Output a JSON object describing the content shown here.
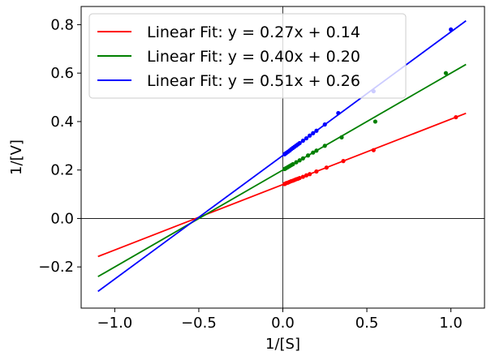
{
  "chart_data": {
    "type": "scatter",
    "title": "",
    "xlabel": "1/[S]",
    "ylabel": "1/[V]",
    "xlim": [
      -1.2,
      1.2
    ],
    "ylim": [
      -0.37,
      0.875
    ],
    "xticks": [
      -1.0,
      -0.5,
      0.0,
      0.5,
      1.0
    ],
    "xtick_labels": [
      "−1.0",
      "−0.5",
      "0.0",
      "0.5",
      "1.0"
    ],
    "yticks": [
      -0.2,
      0.0,
      0.2,
      0.4,
      0.6,
      0.8
    ],
    "ytick_labels": [
      "−0.2",
      "0.0",
      "0.2",
      "0.4",
      "0.6",
      "0.8"
    ],
    "grid": false,
    "reference_lines": {
      "x": 0,
      "y": 0
    },
    "legend": "top-left",
    "fit_x_range": [
      -1.1,
      1.09
    ],
    "series": [
      {
        "name": "Linear Fit: y = 0.27x + 0.14",
        "color": "#ff0000",
        "slope": 0.27,
        "intercept": 0.14,
        "points": {
          "x": [
            0.01,
            0.015,
            0.02,
            0.03,
            0.04,
            0.05,
            0.06,
            0.07,
            0.08,
            0.09,
            0.1,
            0.12,
            0.14,
            0.16,
            0.2,
            0.26,
            0.36,
            0.54,
            1.03
          ],
          "y": [
            0.142,
            0.144,
            0.146,
            0.148,
            0.151,
            0.154,
            0.156,
            0.159,
            0.162,
            0.164,
            0.167,
            0.172,
            0.178,
            0.183,
            0.194,
            0.21,
            0.237,
            0.282,
            0.418
          ]
        }
      },
      {
        "name": "Linear Fit: y = 0.40x + 0.20",
        "color": "#008000",
        "slope": 0.4,
        "intercept": 0.2,
        "points": {
          "x": [
            0.01,
            0.015,
            0.02,
            0.03,
            0.04,
            0.05,
            0.06,
            0.08,
            0.1,
            0.12,
            0.15,
            0.18,
            0.2,
            0.25,
            0.35,
            0.55,
            0.97
          ],
          "y": [
            0.204,
            0.206,
            0.208,
            0.212,
            0.216,
            0.22,
            0.224,
            0.232,
            0.24,
            0.248,
            0.26,
            0.272,
            0.28,
            0.3,
            0.335,
            0.4,
            0.6
          ]
        }
      },
      {
        "name": "Linear Fit: y = 0.51x + 0.26",
        "color": "#0000ff",
        "slope": 0.51,
        "intercept": 0.26,
        "points": {
          "x": [
            0.01,
            0.015,
            0.02,
            0.03,
            0.04,
            0.05,
            0.06,
            0.07,
            0.08,
            0.09,
            0.1,
            0.12,
            0.14,
            0.16,
            0.18,
            0.2,
            0.25,
            0.33,
            0.54,
            1.0
          ],
          "y": [
            0.265,
            0.268,
            0.27,
            0.275,
            0.28,
            0.286,
            0.291,
            0.296,
            0.301,
            0.306,
            0.311,
            0.321,
            0.331,
            0.342,
            0.352,
            0.362,
            0.388,
            0.435,
            0.525,
            0.78
          ]
        }
      }
    ]
  }
}
